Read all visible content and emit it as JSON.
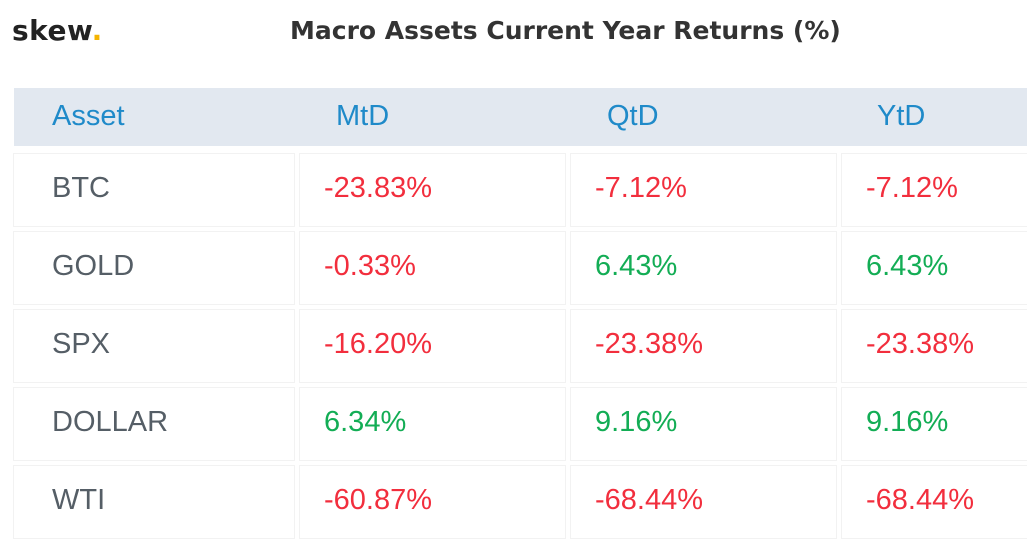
{
  "logo": {
    "text": "skew",
    "dot": "."
  },
  "title": "Macro Assets Current Year Returns (%)",
  "colors": {
    "header_bg": "#e2e8f0",
    "header_text": "#1f8ac9",
    "negative": "#f22e3d",
    "positive": "#13ad55",
    "asset_text": "#555e66"
  },
  "chart_data": {
    "type": "table",
    "title": "Macro Assets Current Year Returns (%)",
    "columns": [
      "Asset",
      "MtD",
      "QtD",
      "YtD"
    ],
    "rows": [
      {
        "asset": "BTC",
        "mtd": "-23.83%",
        "qtd": "-7.12%",
        "ytd": "-7.12%"
      },
      {
        "asset": "GOLD",
        "mtd": "-0.33%",
        "qtd": "6.43%",
        "ytd": "6.43%"
      },
      {
        "asset": "SPX",
        "mtd": "-16.20%",
        "qtd": "-23.38%",
        "ytd": "-23.38%"
      },
      {
        "asset": "DOLLAR",
        "mtd": "6.34%",
        "qtd": "9.16%",
        "ytd": "9.16%"
      },
      {
        "asset": "WTI",
        "mtd": "-60.87%",
        "qtd": "-68.44%",
        "ytd": "-68.44%"
      }
    ]
  }
}
